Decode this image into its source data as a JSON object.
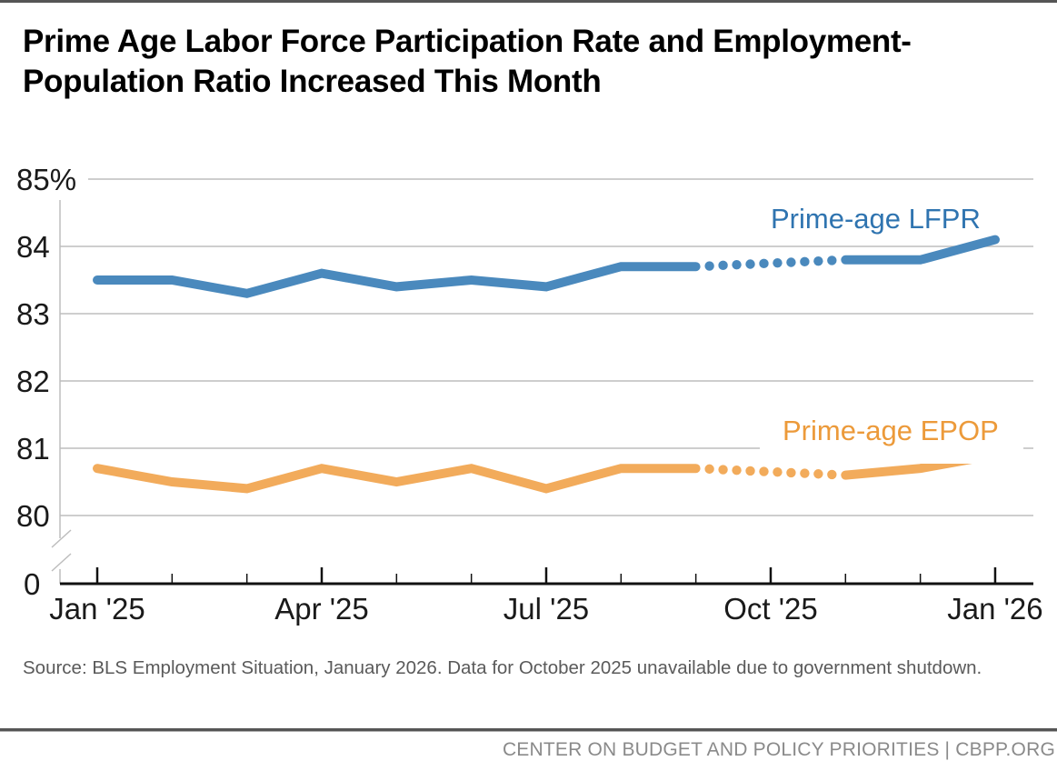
{
  "title": "Prime Age Labor Force Participation Rate and Employment-Population Ratio Increased This Month",
  "source_note": "Source: BLS Employment Situation, January 2026. Data for October 2025 unavailable due to government shutdown.",
  "footer": "CENTER ON BUDGET AND POLICY PRIORITIES | CBPP.ORG",
  "colors": {
    "lfpr": "#4a89bd",
    "lfpr_label": "#2f74b0",
    "epop": "#f2ab5b",
    "epop_label": "#ec9a3a",
    "grid": "#bdbdbd",
    "axis": "#111111"
  },
  "chart_data": {
    "type": "line",
    "title": "Prime Age Labor Force Participation Rate and Employment-Population Ratio Increased This Month",
    "xlabel": "",
    "ylabel": "",
    "x": [
      "Jan '25",
      "Feb '25",
      "Mar '25",
      "Apr '25",
      "May '25",
      "Jun '25",
      "Jul '25",
      "Aug '25",
      "Sep '25",
      "Oct '25",
      "Nov '25",
      "Dec '25",
      "Jan '26"
    ],
    "x_tick_labels": [
      "Jan '25",
      "Apr '25",
      "Jul '25",
      "Oct '25",
      "Jan '26"
    ],
    "x_major_tick_indices": [
      0,
      3,
      6,
      9,
      12
    ],
    "y_ticks": [
      80,
      81,
      82,
      83,
      84,
      85
    ],
    "y_tick_labels": [
      "80",
      "81",
      "82",
      "83",
      "84",
      "85%"
    ],
    "y_zero_label": "0",
    "ylim": [
      80,
      85
    ],
    "axis_break": true,
    "grid": true,
    "missing_note": "October 2025 unavailable; gap bridged with dotted line",
    "series": [
      {
        "name": "Prime-age LFPR",
        "label": "Prime-age LFPR",
        "values": [
          83.5,
          83.5,
          83.3,
          83.6,
          83.4,
          83.5,
          83.4,
          83.7,
          83.7,
          null,
          83.8,
          83.8,
          84.1
        ]
      },
      {
        "name": "Prime-age EPOP",
        "label": "Prime-age EPOP",
        "values": [
          80.7,
          80.5,
          80.4,
          80.7,
          80.5,
          80.7,
          80.4,
          80.7,
          80.7,
          null,
          80.6,
          80.7,
          80.9
        ]
      }
    ]
  }
}
